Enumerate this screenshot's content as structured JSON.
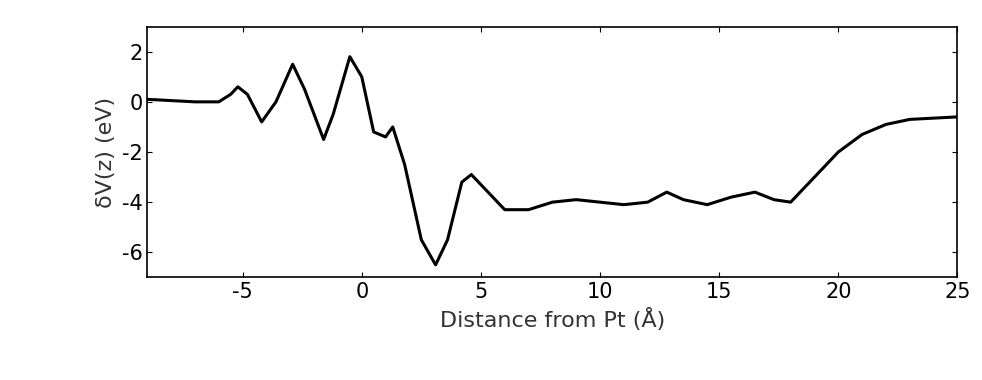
{
  "chart_data": {
    "type": "line",
    "x_label": "Distance from Pt (Å)",
    "y_label": "δV(z) (eV)",
    "x": [
      -9,
      -7,
      -6,
      -5.5,
      -5.2,
      -4.8,
      -4.2,
      -3.6,
      -2.9,
      -2.4,
      -1.6,
      -1.2,
      -0.5,
      0,
      0.5,
      1.0,
      1.3,
      1.8,
      2.5,
      3.1,
      3.6,
      4.2,
      4.6,
      5.2,
      6,
      7,
      8,
      9,
      10,
      11,
      12,
      12.8,
      13.5,
      14.5,
      15.5,
      16.5,
      17.3,
      18,
      19,
      20,
      21,
      22,
      23,
      25
    ],
    "values": [
      0.1,
      0,
      0,
      0.3,
      0.6,
      0.3,
      -0.8,
      0,
      1.5,
      0.5,
      -1.5,
      -0.5,
      1.8,
      1,
      -1.2,
      -1.4,
      -1.0,
      -2.5,
      -5.5,
      -6.5,
      -5.5,
      -3.2,
      -2.9,
      -3.5,
      -4.3,
      -4.3,
      -4.0,
      -3.9,
      -4.0,
      -4.1,
      -4.0,
      -3.6,
      -3.9,
      -4.1,
      -3.8,
      -3.6,
      -3.9,
      -4.0,
      -3.0,
      -2.0,
      -1.3,
      -0.9,
      -0.7,
      -0.6
    ],
    "color": "#000000",
    "xlim": [
      -9,
      25
    ],
    "xticks": [
      -5,
      0,
      5,
      10,
      15,
      20,
      25
    ],
    "ylim": [
      -7,
      3
    ],
    "yticks": [
      -6,
      -4,
      -2,
      0,
      2
    ],
    "grid": false
  }
}
